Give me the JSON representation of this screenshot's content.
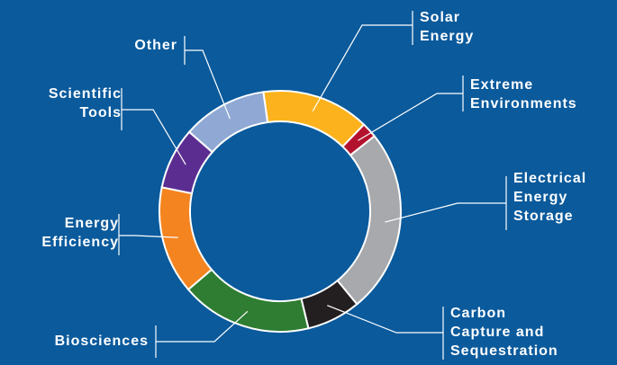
{
  "chart_data": {
    "type": "donut",
    "title": "",
    "colors": {
      "background": "#0a5a9c",
      "separator": "#ffffff",
      "leader": "#ffffff"
    },
    "slices": [
      {
        "lines": [
          "Solar",
          "Energy"
        ],
        "value": 14,
        "color": "#fbb21c"
      },
      {
        "lines": [
          "Extreme",
          "Environments"
        ],
        "value": 2,
        "color": "#b3122e"
      },
      {
        "lines": [
          "Electrical",
          "Energy",
          "Storage"
        ],
        "value": 24,
        "color": "#a7a9ac"
      },
      {
        "lines": [
          "Carbon",
          "Capture and",
          "Sequestration"
        ],
        "value": 7,
        "color": "#231f20"
      },
      {
        "lines": [
          "Biosciences"
        ],
        "value": 17,
        "color": "#2e7d32"
      },
      {
        "lines": [
          "Energy",
          "Efficiency"
        ],
        "value": 14,
        "color": "#f4841f"
      },
      {
        "lines": [
          "Scientific",
          "Tools"
        ],
        "value": 8,
        "color": "#5c2d91"
      },
      {
        "lines": [
          "Other"
        ],
        "value": 11,
        "color": "#8fa9d4"
      }
    ]
  }
}
